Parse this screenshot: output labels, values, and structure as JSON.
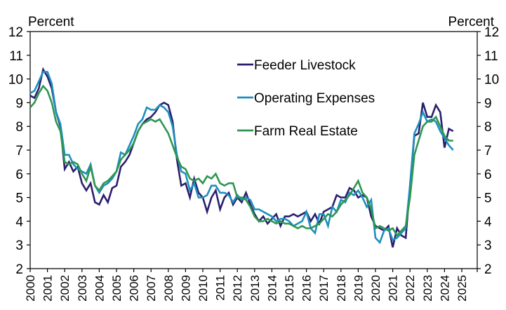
{
  "chart_data": {
    "type": "line",
    "title": "",
    "ylabel_left": "Percent",
    "ylabel_right": "Percent",
    "xlabel": "",
    "ylim": [
      2,
      12
    ],
    "yticks": [
      2,
      3,
      4,
      5,
      6,
      7,
      8,
      9,
      10,
      11,
      12
    ],
    "xlim": [
      2000,
      2025.9
    ],
    "xticks": [
      "2000",
      "2001",
      "2002",
      "2003",
      "2004",
      "2005",
      "2006",
      "2007",
      "2008",
      "2009",
      "2010",
      "2011",
      "2012",
      "2013",
      "2014",
      "2015",
      "2016",
      "2017",
      "2018",
      "2019",
      "2020",
      "2021",
      "2022",
      "2023",
      "2024",
      "2025"
    ],
    "frequency": "quarterly",
    "start": 2000.0,
    "grid": false,
    "legend_position": "upper-center",
    "series": [
      {
        "name": "Feeder Livestock",
        "color": "#2a1f6e",
        "values": [
          9.3,
          9.2,
          9.6,
          10.4,
          10.1,
          9.6,
          8.6,
          8.0,
          6.2,
          6.5,
          6.1,
          6.3,
          5.6,
          5.3,
          5.6,
          4.8,
          4.7,
          5.1,
          4.8,
          5.4,
          5.5,
          6.3,
          6.5,
          6.8,
          7.3,
          7.8,
          8.1,
          8.3,
          8.4,
          8.6,
          8.9,
          9.0,
          8.9,
          8.2,
          6.6,
          5.5,
          5.6,
          5.0,
          5.8,
          5.2,
          5.0,
          4.4,
          5.0,
          5.3,
          4.5,
          5.0,
          5.2,
          4.7,
          5.0,
          4.8,
          5.2,
          4.7,
          4.3,
          4.0,
          4.2,
          3.9,
          4.1,
          4.3,
          3.8,
          4.2,
          4.2,
          4.3,
          4.2,
          4.3,
          4.4,
          4.0,
          4.3,
          3.9,
          4.4,
          4.5,
          4.6,
          5.1,
          5.0,
          5.0,
          5.4,
          5.3,
          5.0,
          5.1,
          5.0,
          4.2,
          3.8,
          3.7,
          3.6,
          3.8,
          2.9,
          3.7,
          3.4,
          3.3,
          5.5,
          7.6,
          7.7,
          9.0,
          8.4,
          8.4,
          8.9,
          8.6,
          7.1,
          7.9,
          7.8
        ]
      },
      {
        "name": "Operating Expenses",
        "color": "#1e8fbf",
        "values": [
          9.4,
          9.5,
          9.9,
          10.3,
          10.3,
          9.8,
          8.6,
          8.1,
          6.8,
          6.8,
          6.4,
          6.2,
          6.1,
          6.0,
          6.4,
          5.5,
          5.2,
          5.5,
          5.6,
          5.8,
          6.1,
          6.9,
          6.8,
          7.2,
          7.6,
          8.1,
          8.3,
          8.8,
          8.7,
          8.7,
          8.9,
          8.8,
          8.6,
          8.0,
          6.8,
          6.1,
          6.0,
          5.3,
          5.6,
          5.0,
          5.0,
          5.1,
          5.5,
          5.5,
          5.2,
          5.2,
          5.1,
          4.8,
          5.1,
          4.9,
          5.0,
          4.9,
          4.5,
          4.5,
          4.4,
          4.3,
          4.2,
          4.0,
          4.1,
          4.1,
          4.0,
          3.8,
          3.9,
          4.0,
          4.4,
          3.7,
          3.5,
          4.3,
          4.3,
          3.8,
          4.6,
          4.4,
          4.9,
          4.8,
          5.2,
          5.1,
          5.3,
          5.0,
          4.6,
          4.9,
          3.3,
          3.1,
          3.6,
          3.7,
          3.2,
          3.3,
          3.5,
          3.7,
          5.5,
          7.7,
          8.1,
          8.6,
          8.2,
          8.3,
          8.2,
          7.8,
          7.5,
          7.2,
          7.0
        ]
      },
      {
        "name": "Farm Real Estate",
        "color": "#2e9650",
        "values": [
          8.8,
          9.0,
          9.4,
          9.7,
          9.5,
          9.0,
          8.2,
          7.8,
          6.5,
          6.4,
          6.5,
          6.4,
          6.0,
          5.7,
          6.3,
          5.5,
          5.3,
          5.6,
          5.7,
          5.9,
          6.1,
          6.6,
          6.8,
          7.0,
          7.3,
          7.8,
          8.1,
          8.2,
          8.3,
          8.2,
          8.3,
          8.0,
          7.7,
          7.2,
          6.7,
          6.3,
          6.2,
          5.8,
          5.7,
          5.8,
          5.6,
          5.9,
          5.8,
          6.0,
          5.6,
          5.5,
          5.6,
          5.6,
          5.0,
          5.0,
          4.9,
          4.6,
          4.2,
          4.0,
          4.0,
          4.1,
          4.0,
          3.9,
          4.0,
          3.9,
          3.9,
          3.8,
          3.7,
          3.8,
          3.7,
          3.7,
          3.8,
          3.9,
          4.1,
          4.3,
          4.2,
          4.4,
          4.7,
          4.9,
          5.1,
          5.4,
          5.7,
          5.2,
          5.0,
          4.5,
          3.7,
          3.8,
          3.7,
          3.6,
          3.7,
          3.4,
          3.6,
          3.8,
          5.0,
          6.8,
          7.4,
          8.0,
          8.2,
          8.2,
          8.4,
          8.0,
          7.6,
          7.4,
          7.4
        ]
      }
    ]
  }
}
